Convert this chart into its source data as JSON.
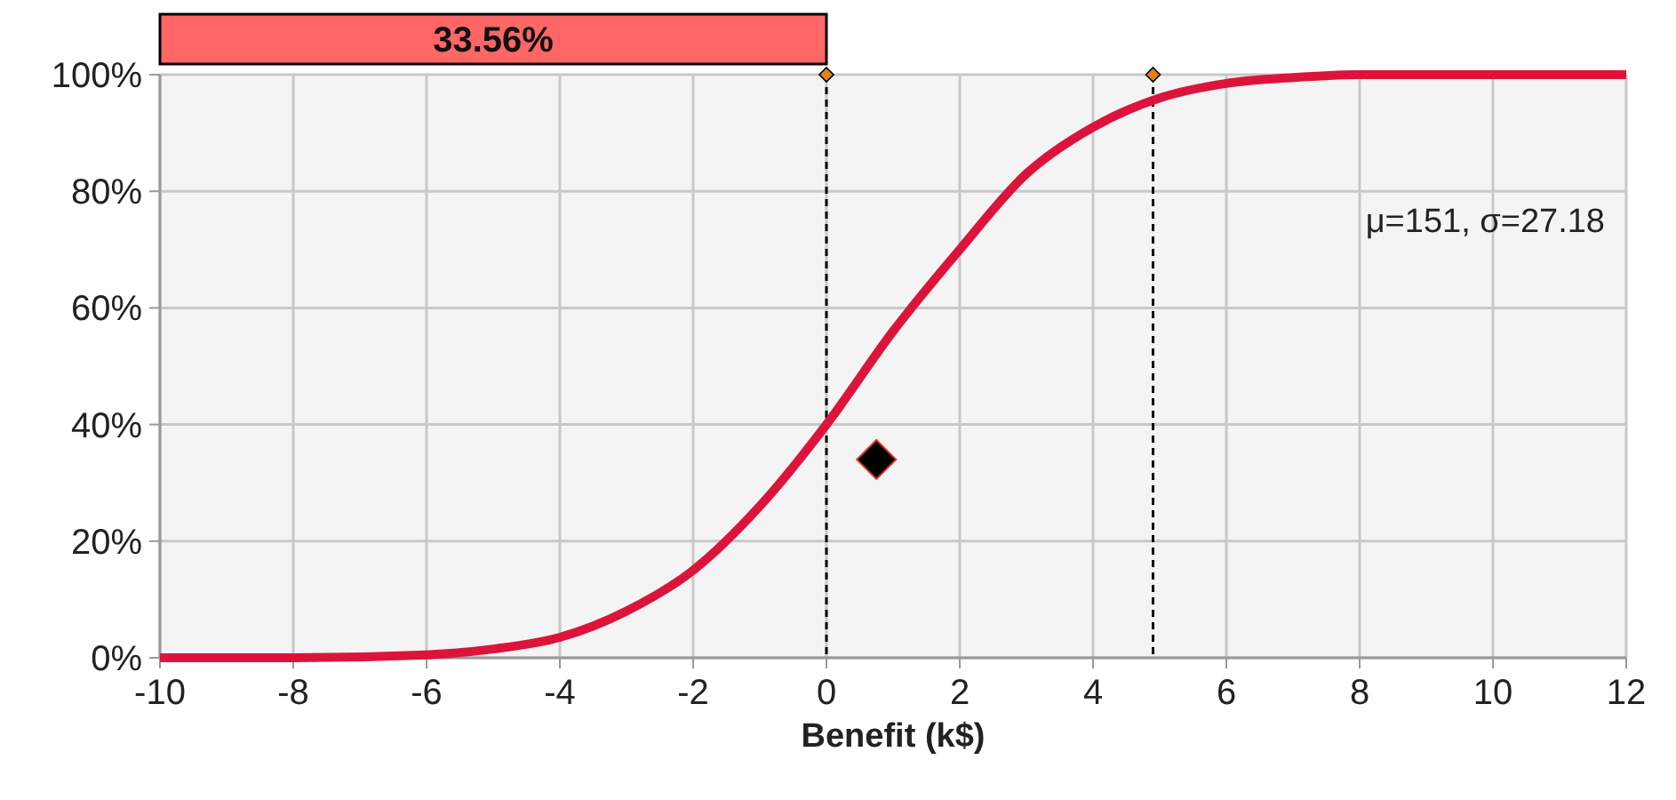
{
  "chart_data": {
    "type": "line",
    "xlabel": "Benefit (k$)",
    "xlim": [
      -10,
      12
    ],
    "xticks": [
      -10,
      -8,
      -6,
      -4,
      -2,
      0,
      2,
      4,
      6,
      8,
      10,
      12
    ],
    "ylim": [
      0,
      100
    ],
    "yticks": [
      {
        "value": 0,
        "label": "0%"
      },
      {
        "value": 20,
        "label": "20%"
      },
      {
        "value": 40,
        "label": "40%"
      },
      {
        "value": 60,
        "label": "60%"
      },
      {
        "value": 80,
        "label": "80%"
      },
      {
        "value": 100,
        "label": "100%"
      }
    ],
    "grid": true,
    "series": [
      {
        "color": "#dc143c",
        "marker": "none",
        "x": [
          -10,
          -8,
          -6,
          -5,
          -4,
          -3,
          -2,
          -1,
          0,
          1,
          2,
          3,
          4,
          5,
          6,
          7,
          8,
          10,
          12
        ],
        "values": [
          0,
          0,
          0.5,
          1.5,
          3.5,
          8,
          15,
          26,
          40,
          56,
          70,
          83,
          91,
          96,
          98.5,
          99.5,
          100,
          100,
          100
        ]
      },
      {
        "type": "scatter",
        "color": "#000000",
        "marker": "diamond",
        "x": [
          0.75
        ],
        "values": [
          34
        ]
      }
    ],
    "ref_lines": [
      {
        "axis": "x",
        "value": 0,
        "line_style": "dashed",
        "color": "#000000"
      },
      {
        "axis": "x",
        "value": 4.9,
        "line_style": "dashed",
        "color": "#000000"
      }
    ],
    "annotations": [
      "33.56%",
      "μ=151, σ=27.18"
    ]
  }
}
